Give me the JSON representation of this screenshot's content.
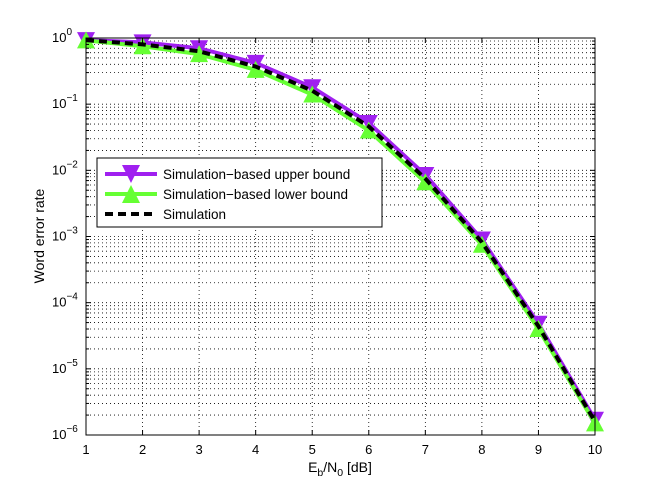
{
  "chart_data": {
    "type": "line",
    "title": "",
    "xlabel": {
      "main": "E",
      "sub1": "b",
      "mid": "/N",
      "sub2": "0",
      "tail": " [dB]"
    },
    "ylabel": "Word error rate",
    "x_scale": "linear",
    "y_scale": "log",
    "xlim": [
      1,
      10
    ],
    "ylim": [
      1e-06,
      1
    ],
    "x_ticks": [
      "1",
      "2",
      "3",
      "4",
      "5",
      "6",
      "7",
      "8",
      "9",
      "10"
    ],
    "y_ticks": [
      {
        "value": 1.0,
        "base": "10",
        "exp": "0"
      },
      {
        "value": 0.1,
        "base": "10",
        "exp": "−1"
      },
      {
        "value": 0.01,
        "base": "10",
        "exp": "−2"
      },
      {
        "value": 0.001,
        "base": "10",
        "exp": "−3"
      },
      {
        "value": 0.0001,
        "base": "10",
        "exp": "−4"
      },
      {
        "value": 1e-05,
        "base": "10",
        "exp": "−5"
      },
      {
        "value": 1e-06,
        "base": "10",
        "exp": "−6"
      }
    ],
    "grid": true,
    "legend_position": "left",
    "x": [
      1,
      2,
      3,
      4,
      5,
      6,
      7,
      8,
      9,
      10
    ],
    "series": [
      {
        "name": "Simulation−based upper bound",
        "color": "#a020f0",
        "marker": "triangle-down",
        "values": [
          0.93,
          0.86,
          0.7,
          0.42,
          0.18,
          0.052,
          0.0085,
          0.0009,
          4.8e-05,
          1.7e-06
        ]
      },
      {
        "name": "Simulation−based lower bound",
        "color": "#66ff33",
        "marker": "triangle-up",
        "values": [
          0.92,
          0.75,
          0.57,
          0.33,
          0.14,
          0.04,
          0.0066,
          0.00075,
          4e-05,
          1.5e-06
        ]
      },
      {
        "name": "Simulation",
        "color": "#000000",
        "marker": "none",
        "dash": "8,5",
        "values": [
          0.93,
          0.8,
          0.63,
          0.37,
          0.16,
          0.046,
          0.0075,
          0.00082,
          4.4e-05,
          1.6e-06
        ]
      }
    ]
  }
}
